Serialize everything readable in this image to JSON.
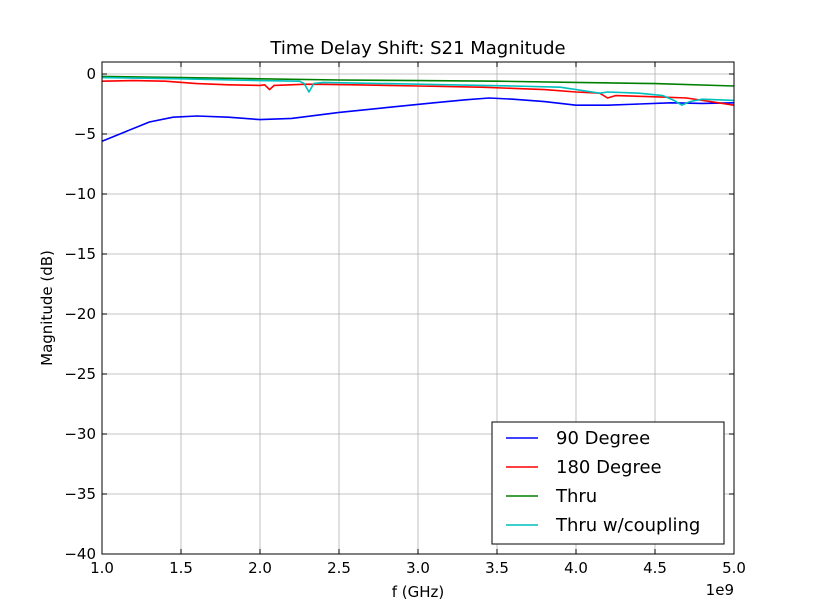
{
  "chart_data": {
    "type": "line",
    "title": "Time Delay Shift: S21 Magnitude",
    "xlabel": "f (GHz)",
    "ylabel": "Magnitude (dB)",
    "x_offset_label": "1e9",
    "xlim": [
      1.0,
      5.0
    ],
    "ylim": [
      -40,
      1
    ],
    "xticks": [
      "1.0",
      "1.5",
      "2.0",
      "2.5",
      "3.0",
      "3.5",
      "4.0",
      "4.5",
      "5.0"
    ],
    "yticks": [
      "0",
      "−5",
      "−10",
      "−15",
      "−20",
      "−25",
      "−30",
      "−35",
      "−40"
    ],
    "grid": true,
    "legend_position": "lower-right",
    "series": [
      {
        "name": "90 Degree",
        "color": "#0000ff",
        "points": [
          [
            1.0,
            -5.6
          ],
          [
            1.15,
            -4.8
          ],
          [
            1.3,
            -4.0
          ],
          [
            1.45,
            -3.6
          ],
          [
            1.6,
            -3.5
          ],
          [
            1.8,
            -3.6
          ],
          [
            2.0,
            -3.8
          ],
          [
            2.2,
            -3.7
          ],
          [
            2.5,
            -3.2
          ],
          [
            2.8,
            -2.8
          ],
          [
            3.1,
            -2.4
          ],
          [
            3.3,
            -2.15
          ],
          [
            3.45,
            -2.0
          ],
          [
            3.6,
            -2.1
          ],
          [
            3.8,
            -2.3
          ],
          [
            4.0,
            -2.6
          ],
          [
            4.2,
            -2.6
          ],
          [
            4.4,
            -2.5
          ],
          [
            4.6,
            -2.4
          ],
          [
            4.8,
            -2.45
          ],
          [
            5.0,
            -2.4
          ]
        ]
      },
      {
        "name": "180 Degree",
        "color": "#ff0000",
        "points": [
          [
            1.0,
            -0.6
          ],
          [
            1.2,
            -0.55
          ],
          [
            1.4,
            -0.6
          ],
          [
            1.6,
            -0.8
          ],
          [
            1.8,
            -0.9
          ],
          [
            2.0,
            -0.95
          ],
          [
            2.03,
            -0.9
          ],
          [
            2.06,
            -1.3
          ],
          [
            2.09,
            -0.95
          ],
          [
            2.3,
            -0.85
          ],
          [
            2.6,
            -0.9
          ],
          [
            3.0,
            -1.0
          ],
          [
            3.4,
            -1.1
          ],
          [
            3.8,
            -1.3
          ],
          [
            4.0,
            -1.5
          ],
          [
            4.15,
            -1.6
          ],
          [
            4.2,
            -2.0
          ],
          [
            4.25,
            -1.8
          ],
          [
            4.5,
            -1.9
          ],
          [
            4.7,
            -2.0
          ],
          [
            4.85,
            -2.3
          ],
          [
            5.0,
            -2.6
          ]
        ]
      },
      {
        "name": "Thru",
        "color": "#008000",
        "points": [
          [
            1.0,
            -0.2
          ],
          [
            1.5,
            -0.3
          ],
          [
            2.0,
            -0.4
          ],
          [
            2.5,
            -0.5
          ],
          [
            3.0,
            -0.55
          ],
          [
            3.5,
            -0.6
          ],
          [
            4.0,
            -0.7
          ],
          [
            4.5,
            -0.8
          ],
          [
            5.0,
            -1.0
          ]
        ]
      },
      {
        "name": "Thru w/coupling",
        "color": "#00bfbf",
        "points": [
          [
            1.0,
            -0.3
          ],
          [
            1.5,
            -0.4
          ],
          [
            2.0,
            -0.55
          ],
          [
            2.25,
            -0.6
          ],
          [
            2.28,
            -0.8
          ],
          [
            2.31,
            -1.5
          ],
          [
            2.34,
            -0.8
          ],
          [
            2.4,
            -0.7
          ],
          [
            2.8,
            -0.8
          ],
          [
            3.2,
            -0.9
          ],
          [
            3.6,
            -1.0
          ],
          [
            3.9,
            -1.1
          ],
          [
            4.0,
            -1.3
          ],
          [
            4.15,
            -1.6
          ],
          [
            4.2,
            -1.5
          ],
          [
            4.4,
            -1.6
          ],
          [
            4.55,
            -1.8
          ],
          [
            4.62,
            -2.2
          ],
          [
            4.67,
            -2.6
          ],
          [
            4.72,
            -2.3
          ],
          [
            4.8,
            -2.1
          ],
          [
            5.0,
            -2.2
          ]
        ]
      }
    ]
  }
}
